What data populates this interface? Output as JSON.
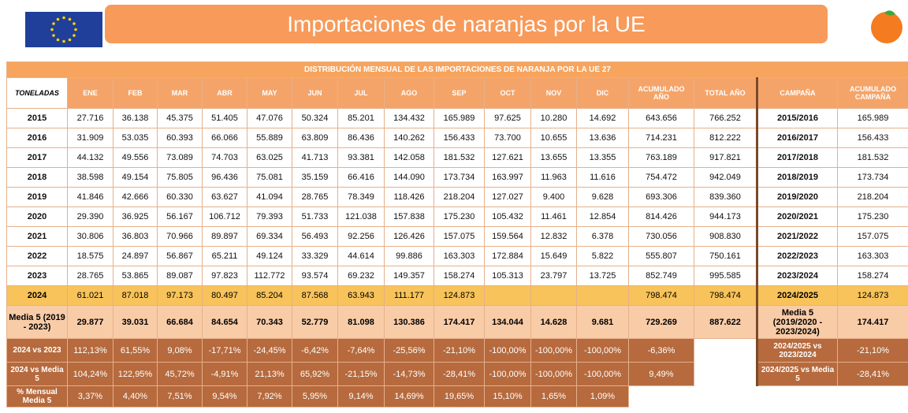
{
  "header": {
    "title": "Importaciones de naranjas por la UE"
  },
  "table": {
    "title": "DISTRIBUCIÓN MENSUAL DE LAS IMPORTACIONES DE NARANJA POR LA UE 27",
    "headers": [
      "TONELADAS",
      "ENE",
      "FEB",
      "MAR",
      "ABR",
      "MAY",
      "JUN",
      "JUL",
      "AGO",
      "SEP",
      "OCT",
      "NOV",
      "DIC",
      "ACUMULADO AÑO",
      "TOTAL AÑO",
      "CAMPAÑA",
      "ACUMULADO CAMPAÑA"
    ],
    "rows": [
      [
        "2015",
        "27.716",
        "36.138",
        "45.375",
        "51.405",
        "47.076",
        "50.324",
        "85.201",
        "134.432",
        "165.989",
        "97.625",
        "10.280",
        "14.692",
        "643.656",
        "766.252",
        "2015/2016",
        "165.989"
      ],
      [
        "2016",
        "31.909",
        "53.035",
        "60.393",
        "66.066",
        "55.889",
        "63.809",
        "86.436",
        "140.262",
        "156.433",
        "73.700",
        "10.655",
        "13.636",
        "714.231",
        "812.222",
        "2016/2017",
        "156.433"
      ],
      [
        "2017",
        "44.132",
        "49.556",
        "73.089",
        "74.703",
        "63.025",
        "41.713",
        "93.381",
        "142.058",
        "181.532",
        "127.621",
        "13.655",
        "13.355",
        "763.189",
        "917.821",
        "2017/2018",
        "181.532"
      ],
      [
        "2018",
        "38.598",
        "49.154",
        "75.805",
        "96.436",
        "75.081",
        "35.159",
        "66.416",
        "144.090",
        "173.734",
        "163.997",
        "11.963",
        "11.616",
        "754.472",
        "942.049",
        "2018/2019",
        "173.734"
      ],
      [
        "2019",
        "41.846",
        "42.666",
        "60.330",
        "63.627",
        "41.094",
        "28.765",
        "78.349",
        "118.426",
        "218.204",
        "127.027",
        "9.400",
        "9.628",
        "693.306",
        "839.360",
        "2019/2020",
        "218.204"
      ],
      [
        "2020",
        "29.390",
        "36.925",
        "56.167",
        "106.712",
        "79.393",
        "51.733",
        "121.038",
        "157.838",
        "175.230",
        "105.432",
        "11.461",
        "12.854",
        "814.426",
        "944.173",
        "2020/2021",
        "175.230"
      ],
      [
        "2021",
        "30.806",
        "36.803",
        "70.966",
        "89.897",
        "69.334",
        "56.493",
        "92.256",
        "126.426",
        "157.075",
        "159.564",
        "12.832",
        "6.378",
        "730.056",
        "908.830",
        "2021/2022",
        "157.075"
      ],
      [
        "2022",
        "18.575",
        "24.897",
        "56.867",
        "65.211",
        "49.124",
        "33.329",
        "44.614",
        "99.886",
        "163.303",
        "172.884",
        "15.649",
        "5.822",
        "555.807",
        "750.161",
        "2022/2023",
        "163.303"
      ],
      [
        "2023",
        "28.765",
        "53.865",
        "89.087",
        "97.823",
        "112.772",
        "93.574",
        "69.232",
        "149.357",
        "158.274",
        "105.313",
        "23.797",
        "13.725",
        "852.749",
        "995.585",
        "2023/2024",
        "158.274"
      ],
      [
        "2024",
        "61.021",
        "87.018",
        "97.173",
        "80.497",
        "85.204",
        "87.568",
        "63.943",
        "111.177",
        "124.873",
        null,
        null,
        null,
        "798.474",
        "798.474",
        "2024/2025",
        "124.873"
      ],
      [
        "Media 5 (2019 - 2023)",
        "29.877",
        "39.031",
        "66.684",
        "84.654",
        "70.343",
        "52.779",
        "81.098",
        "130.386",
        "174.417",
        "134.044",
        "14.628",
        "9.681",
        "729.269",
        "887.622",
        "Media 5 (2019/2020 - 2023/2024)",
        "174.417"
      ],
      [
        "2024 vs 2023",
        "112,13%",
        "61,55%",
        "9,08%",
        "-17,71%",
        "-24,45%",
        "-6,42%",
        "-7,64%",
        "-25,56%",
        "-21,10%",
        "-100,00%",
        "-100,00%",
        "-100,00%",
        "-6,36%",
        null,
        "2024/2025 vs 2023/2024",
        "-21,10%"
      ],
      [
        "2024 vs Media 5",
        "104,24%",
        "122,95%",
        "45,72%",
        "-4,91%",
        "21,13%",
        "65,92%",
        "-21,15%",
        "-14,73%",
        "-28,41%",
        "-100,00%",
        "-100,00%",
        "-100,00%",
        "9,49%",
        null,
        "2024/2025 vs Media 5",
        "-28,41%"
      ],
      [
        "% Mensual Media 5",
        "3,37%",
        "4,40%",
        "7,51%",
        "9,54%",
        "7,92%",
        "5,95%",
        "9,14%",
        "14,69%",
        "19,65%",
        "15,10%",
        "1,65%",
        "1,09%",
        null,
        null,
        null,
        null
      ]
    ]
  }
}
